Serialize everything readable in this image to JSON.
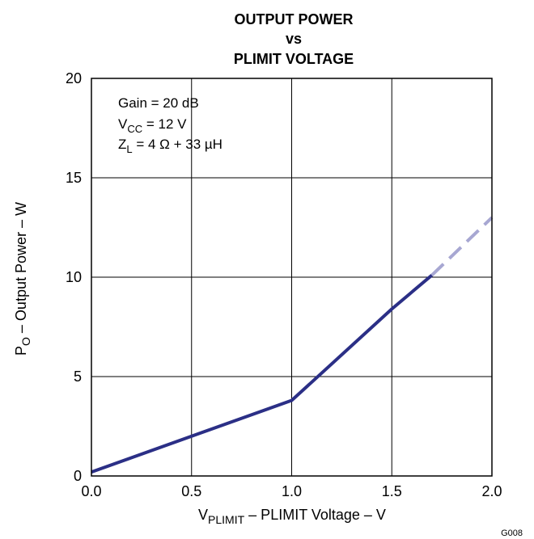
{
  "chart_data": {
    "type": "line",
    "title_lines": [
      "OUTPUT POWER",
      "vs",
      "PLIMIT VOLTAGE"
    ],
    "xlabel": {
      "main": "V",
      "sub": "PLIMIT",
      "rest": " – PLIMIT Voltage – V"
    },
    "ylabel": {
      "main": "P",
      "sub": "O",
      "rest": " – Output Power – W"
    },
    "xlim": [
      0,
      2
    ],
    "ylim": [
      0,
      20
    ],
    "xticks": [
      "0.0",
      "0.5",
      "1.0",
      "1.5",
      "2.0"
    ],
    "yticks": [
      "0",
      "5",
      "10",
      "15",
      "20"
    ],
    "grid": true,
    "annotations": {
      "gain": "Gain = 20 dB",
      "vcc": {
        "main": "V",
        "sub": "CC",
        "rest": " = 12 V"
      },
      "zl": {
        "main": "Z",
        "sub": "L",
        "rest": " = 4 Ω + 33 µH"
      }
    },
    "figure_id": "G008",
    "series": [
      {
        "style": "solid",
        "color": "#2b2f86",
        "x": [
          0.0,
          1.0,
          1.5,
          1.7
        ],
        "y": [
          0.2,
          3.8,
          8.4,
          10.1
        ]
      },
      {
        "style": "dashed",
        "color": "#a7a7d2",
        "x": [
          1.7,
          2.0
        ],
        "y": [
          10.1,
          13.0
        ]
      }
    ]
  }
}
